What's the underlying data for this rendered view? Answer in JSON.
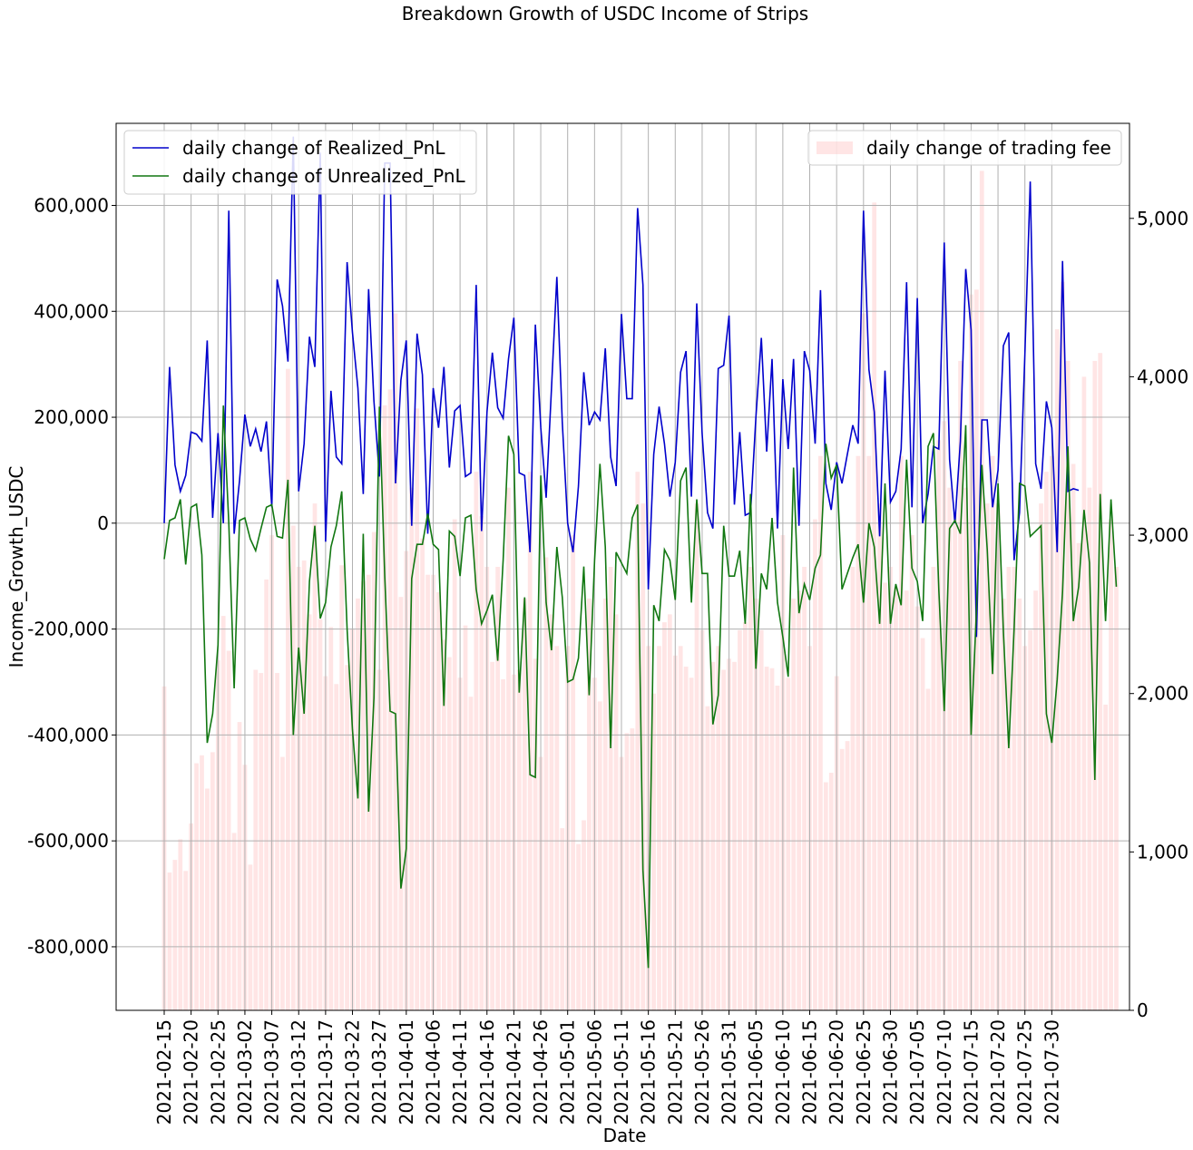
{
  "chart_data": {
    "type": "line",
    "title": "Breakdown Growth of USDC Income of Strips",
    "xlabel": "Date",
    "ylabel": "Income_Growth_USDC",
    "y2label": "",
    "start_date": "2021-02-15",
    "x_tick_labels": [
      "2021-02-15",
      "2021-02-20",
      "2021-02-25",
      "2021-03-02",
      "2021-03-07",
      "2021-03-12",
      "2021-03-17",
      "2021-03-22",
      "2021-03-27",
      "2021-04-01",
      "2021-04-06",
      "2021-04-11",
      "2021-04-16",
      "2021-04-21",
      "2021-04-26",
      "2021-05-01",
      "2021-05-06",
      "2021-05-11",
      "2021-05-16",
      "2021-05-21",
      "2021-05-26",
      "2021-05-31",
      "2021-06-05",
      "2021-06-10",
      "2021-06-15",
      "2021-06-20",
      "2021-06-25",
      "2021-06-30",
      "2021-07-05",
      "2021-07-10",
      "2021-07-15",
      "2021-07-20",
      "2021-07-25",
      "2021-07-30"
    ],
    "ylim": [
      -920000,
      755000
    ],
    "y_ticks": [
      -800000,
      -600000,
      -400000,
      -200000,
      0,
      200000,
      400000,
      600000
    ],
    "y_tick_labels": [
      "-800,000",
      "-600,000",
      "-400,000",
      "-200,000",
      "0",
      "200,000",
      "400,000",
      "600,000"
    ],
    "y2lim": [
      0,
      5600
    ],
    "y2_ticks": [
      0,
      1000,
      2000,
      3000,
      4000,
      5000
    ],
    "y2_tick_labels": [
      "0",
      "1,000",
      "2,000",
      "3,000",
      "4,000",
      "5,000"
    ],
    "grid": true,
    "legend_left_placement": "upper-left",
    "legend_right_placement": "upper-right",
    "series": [
      {
        "name": "daily change of Realized_PnL",
        "axis": "left",
        "color": "#0000cc",
        "style": "line",
        "values": [
          0,
          295000,
          110000,
          60000,
          90000,
          172000,
          168000,
          155000,
          345000,
          10000,
          170000,
          0,
          590000,
          -20000,
          80000,
          205000,
          145000,
          178000,
          135000,
          192000,
          30000,
          460000,
          410000,
          305000,
          730000,
          60000,
          150000,
          352000,
          295000,
          700000,
          -35000,
          250000,
          125000,
          112000,
          493000,
          360000,
          255000,
          55000,
          442000,
          230000,
          88000,
          680000,
          680000,
          75000,
          270000,
          345000,
          -5000,
          358000,
          280000,
          -20000,
          255000,
          180000,
          295000,
          105000,
          212000,
          222000,
          88000,
          95000,
          450000,
          -15000,
          210000,
          322000,
          218000,
          198000,
          310000,
          388000,
          95000,
          90000,
          -55000,
          375000,
          180000,
          48000,
          255000,
          465000,
          190000,
          0,
          -55000,
          70000,
          285000,
          185000,
          210000,
          195000,
          330000,
          125000,
          70000,
          395000,
          235000,
          235000,
          595000,
          450000,
          -125000,
          130000,
          220000,
          150000,
          50000,
          115000,
          285000,
          325000,
          50000,
          415000,
          170000,
          20000,
          -10000,
          292000,
          298000,
          392000,
          35000,
          172000,
          15000,
          20000,
          200000,
          350000,
          135000,
          310000,
          -10000,
          272000,
          140000,
          310000,
          -5000,
          325000,
          288000,
          150000,
          440000,
          75000,
          25000,
          115000,
          75000,
          130000,
          185000,
          150000,
          590000,
          290000,
          210000,
          -25000,
          288000,
          40000,
          60000,
          140000,
          455000,
          30000,
          425000,
          0,
          55000,
          145000,
          140000,
          530000,
          120000,
          0,
          155000,
          480000,
          365000,
          -215000,
          195000,
          195000,
          30000,
          100000,
          335000,
          360000,
          -70000,
          20000,
          320000,
          645000,
          112000,
          65000,
          230000,
          180000,
          -55000,
          495000,
          60000,
          65000,
          62000
        ]
      },
      {
        "name": "daily change of Unrealized_PnL",
        "axis": "left",
        "color": "#117711",
        "style": "line",
        "values": [
          -68000,
          5000,
          10000,
          45000,
          -78000,
          30000,
          36000,
          -60000,
          -415000,
          -360000,
          -230000,
          222000,
          0,
          -312000,
          5000,
          10000,
          -30000,
          -52000,
          -10000,
          30000,
          35000,
          -25000,
          -28000,
          82000,
          -400000,
          -235000,
          -360000,
          -110000,
          -5000,
          -180000,
          -150000,
          -45000,
          -5000,
          60000,
          -200000,
          -390000,
          -520000,
          -20000,
          -545000,
          -330000,
          220000,
          -100000,
          -355000,
          -360000,
          -690000,
          -615000,
          -105000,
          -40000,
          -40000,
          18000,
          -40000,
          -50000,
          -345000,
          -15000,
          -25000,
          -100000,
          10000,
          15000,
          -125000,
          -190000,
          -165000,
          -135000,
          -260000,
          -70000,
          165000,
          130000,
          -320000,
          -140000,
          -475000,
          -480000,
          90000,
          -150000,
          -240000,
          -45000,
          -140000,
          -300000,
          -295000,
          -255000,
          -82000,
          -325000,
          -70000,
          112000,
          -45000,
          -425000,
          -55000,
          -75000,
          -95000,
          10000,
          35000,
          -655000,
          -840000,
          -155000,
          -185000,
          -50000,
          -70000,
          -145000,
          80000,
          105000,
          -150000,
          45000,
          -95000,
          -95000,
          -380000,
          -325000,
          -5000,
          -100000,
          -100000,
          -52000,
          -190000,
          55000,
          -275000,
          -95000,
          -125000,
          10000,
          -150000,
          -215000,
          -290000,
          105000,
          -170000,
          -115000,
          -145000,
          -85000,
          -60000,
          150000,
          85000,
          110000,
          -125000,
          -95000,
          -65000,
          -40000,
          -150000,
          0,
          -45000,
          -190000,
          75000,
          -190000,
          -115000,
          -155000,
          120000,
          -85000,
          -110000,
          -185000,
          145000,
          170000,
          -125000,
          -355000,
          -10000,
          5000,
          -20000,
          185000,
          -400000,
          -165000,
          110000,
          -50000,
          -285000,
          75000,
          -205000,
          -425000,
          -200000,
          75000,
          70000,
          -25000,
          -15000,
          -5000,
          -360000,
          -415000,
          -295000,
          -130000,
          145000,
          -185000,
          -120000,
          25000,
          -75000,
          -485000,
          55000,
          -185000,
          45000,
          -120000
        ]
      },
      {
        "name": "daily change of trading fee",
        "axis": "right",
        "color": "#ff9999",
        "style": "bar",
        "values": [
          2045,
          870,
          950,
          1080,
          880,
          1180,
          1560,
          1610,
          1400,
          1630,
          2210,
          2490,
          2270,
          1120,
          1820,
          1550,
          920,
          2150,
          2130,
          2720,
          3000,
          2130,
          1600,
          4050,
          3060,
          2800,
          2840,
          2500,
          3200,
          2470,
          2110,
          2420,
          2060,
          2810,
          2180,
          2410,
          2600,
          2710,
          2750,
          3020,
          2150,
          3820,
          3920,
          4400,
          2610,
          2900,
          3300,
          3800,
          2980,
          2750,
          2750,
          2640,
          2340,
          2230,
          3100,
          2100,
          2430,
          1980,
          3400,
          3120,
          2800,
          2200,
          2800,
          2090,
          3300,
          2120,
          2150,
          2600,
          3400,
          2220,
          1600,
          2860,
          2500,
          2300,
          1150,
          2300,
          3000,
          1050,
          1200,
          2600,
          2100,
          1950,
          2600,
          2800,
          2500,
          1600,
          1750,
          1780,
          3400,
          3200,
          2300,
          2000,
          2300,
          2450,
          2500,
          2240,
          2300,
          2170,
          2100,
          3200,
          2400,
          1920,
          2200,
          2300,
          2150,
          2220,
          2200,
          2400,
          2450,
          2800,
          2600,
          2400,
          2170,
          2160,
          2050,
          3000,
          2100,
          2600,
          2650,
          2800,
          2300,
          3100,
          3500,
          1440,
          1500,
          2110,
          1650,
          1700,
          2800,
          3500,
          4400,
          3500,
          5100,
          3200,
          2700,
          2800,
          2670,
          3500,
          2650,
          3000,
          2550,
          2350,
          2030,
          2800,
          3600,
          3720,
          3300,
          3140,
          4100,
          3300,
          4520,
          4550,
          5300,
          3200,
          3500,
          3200,
          2600,
          2800,
          2800,
          2600,
          2300,
          2400,
          2650,
          3200,
          3400,
          3500,
          4300,
          4600,
          4100,
          3450,
          2950,
          4000,
          3300,
          4100,
          4150,
          1930,
          3100,
          2800
        ]
      }
    ]
  }
}
